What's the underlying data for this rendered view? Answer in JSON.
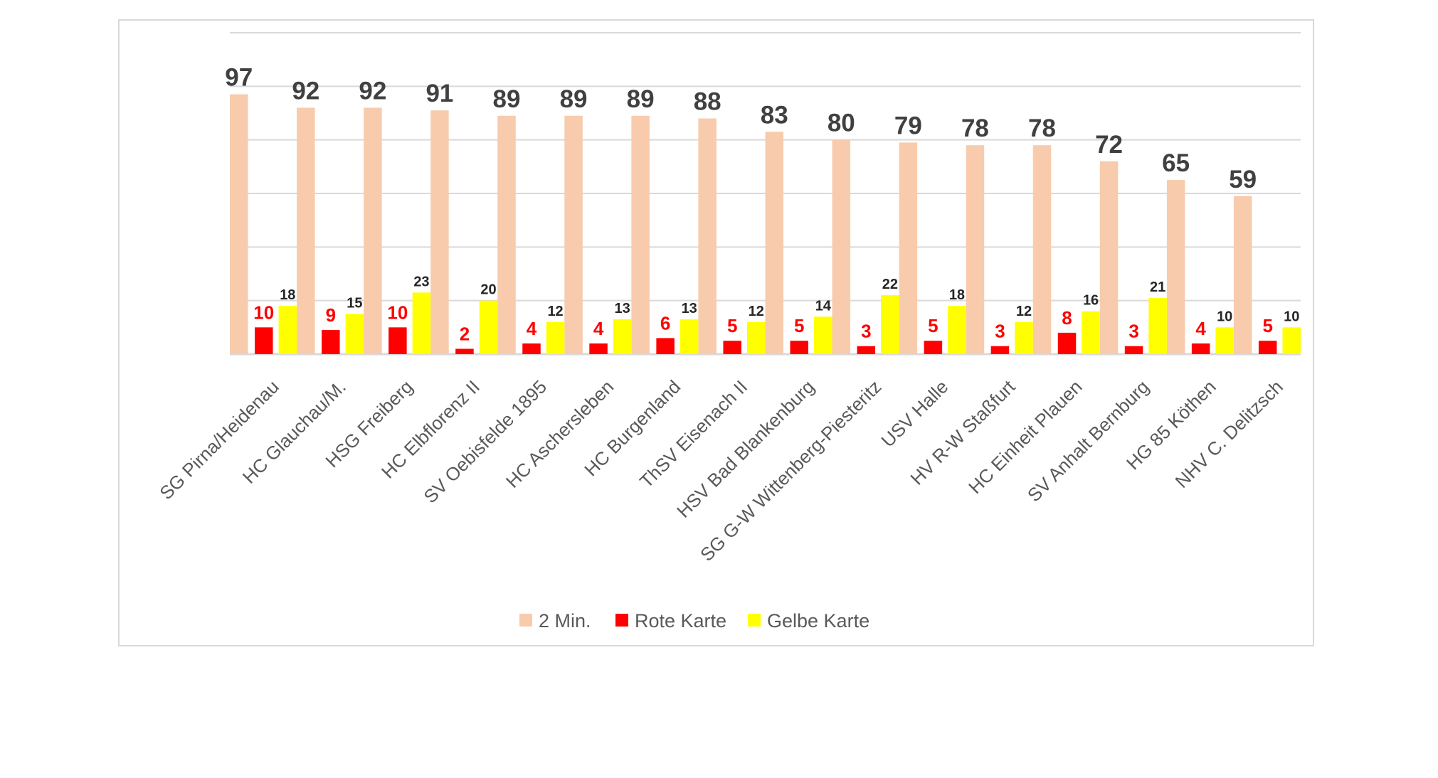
{
  "chart_data": {
    "type": "bar",
    "title": "",
    "xlabel": "",
    "ylabel": "",
    "ylim": [
      0,
      120
    ],
    "ytick_step": 20,
    "y_tick_labels_visible": false,
    "grid": true,
    "legend_position": "bottom",
    "categories": [
      "SG Pirna/Heidenau",
      "HC Glauchau/M.",
      "HSG Freiberg",
      "HC Elbflorenz II",
      "SV Oebisfelde 1895",
      "HC Aschersleben",
      "HC Burgenland",
      "ThSV Eisenach II",
      "HSV Bad Blankenburg",
      "SG G-W Wittenberg-Piesteritz",
      "USV Halle",
      "HV R-W Staßfurt",
      "HC Einheit Plauen",
      "SV Anhalt Bernburg",
      "HG 85 Köthen",
      "NHV C. Delitzsch"
    ],
    "series": [
      {
        "name": "2 Min.",
        "color": "#f8cbad",
        "label_color": "#404040",
        "values": [
          97,
          92,
          92,
          91,
          89,
          89,
          89,
          88,
          83,
          80,
          79,
          78,
          78,
          72,
          65,
          59
        ]
      },
      {
        "name": "Rote Karte",
        "color": "#ff0000",
        "label_color": "#ff0000",
        "values": [
          10,
          9,
          10,
          2,
          4,
          4,
          6,
          5,
          5,
          3,
          5,
          3,
          8,
          3,
          4,
          5
        ]
      },
      {
        "name": "Gelbe Karte",
        "color": "#ffff00",
        "label_color": "#262626",
        "values": [
          18,
          15,
          23,
          20,
          12,
          13,
          13,
          12,
          14,
          22,
          18,
          12,
          16,
          21,
          10,
          10
        ]
      }
    ]
  }
}
